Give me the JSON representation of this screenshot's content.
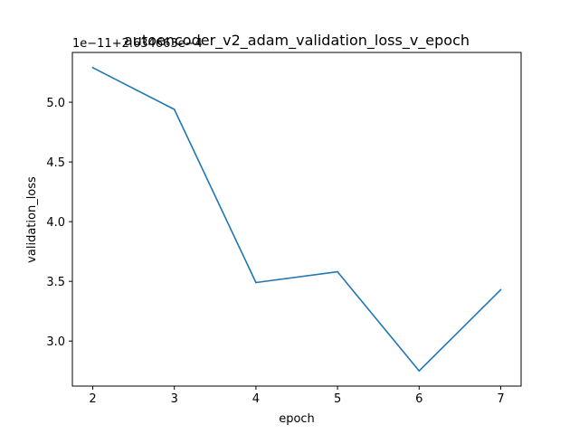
{
  "chart_data": {
    "type": "line",
    "title": "autoencoder_v2_adam_validation_loss_v_epoch",
    "xlabel": "epoch",
    "ylabel": "validation_loss",
    "offset_text": "1e−11+2.634663e−4",
    "x": [
      2,
      3,
      4,
      5,
      6,
      7
    ],
    "series": [
      {
        "values": [
          5.29,
          4.94,
          3.49,
          3.58,
          2.75,
          3.43
        ]
      }
    ],
    "x_ticks": [
      2,
      3,
      4,
      5,
      6,
      7
    ],
    "y_ticks": [
      3.0,
      3.5,
      4.0,
      4.5,
      5.0
    ],
    "x_tick_labels": [
      "2",
      "3",
      "4",
      "5",
      "6",
      "7"
    ],
    "y_tick_labels": [
      "3.0",
      "3.5",
      "4.0",
      "4.5",
      "5.0"
    ],
    "xlim": [
      1.75,
      7.25
    ],
    "ylim": [
      2.623,
      5.417
    ],
    "grid": false,
    "line_color": "#1f77b4"
  }
}
